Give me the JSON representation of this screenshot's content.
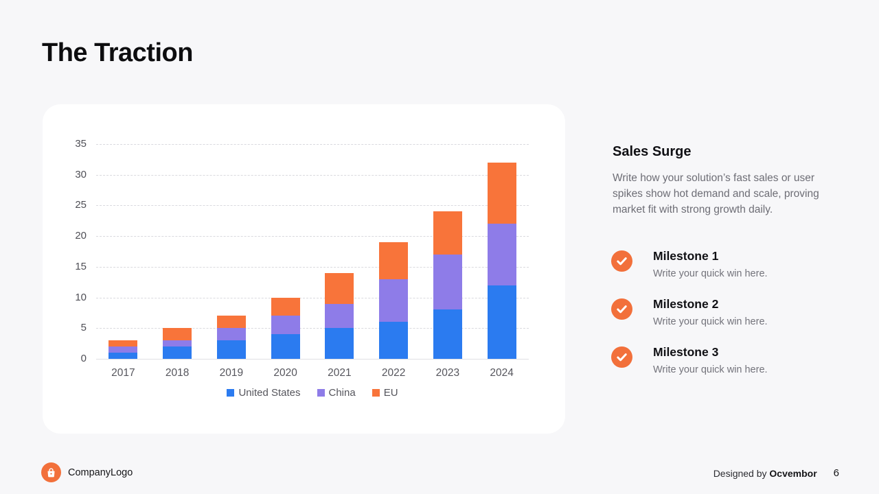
{
  "slide": {
    "title": "The Traction"
  },
  "chart_data": {
    "type": "bar",
    "stacked": true,
    "title": "",
    "xlabel": "",
    "ylabel": "",
    "categories": [
      "2017",
      "2018",
      "2019",
      "2020",
      "2021",
      "2022",
      "2023",
      "2024"
    ],
    "series": [
      {
        "name": "United States",
        "color": "#2B7BF0",
        "values": [
          1,
          2,
          3,
          4,
          5,
          6,
          8,
          12
        ]
      },
      {
        "name": "China",
        "color": "#8E7CE8",
        "values": [
          1,
          1,
          2,
          3,
          4,
          7,
          9,
          10
        ]
      },
      {
        "name": "EU",
        "color": "#F8743A",
        "values": [
          1,
          2,
          2,
          3,
          5,
          6,
          7,
          10
        ]
      }
    ],
    "totals": [
      3,
      5,
      7,
      10,
      14,
      19,
      24,
      32
    ],
    "ylim": [
      0,
      35
    ],
    "ytick_step": 5,
    "yticks": [
      0,
      5,
      10,
      15,
      20,
      25,
      30,
      35
    ],
    "grid": true,
    "gridline_style": "dashed",
    "legend_position": "bottom"
  },
  "sidebar": {
    "heading": "Sales Surge",
    "description": "Write how your solution’s fast sales or user spikes show hot demand and scale, proving market fit with strong growth daily.",
    "check_color": "#F2703B",
    "milestones": [
      {
        "title": "Milestone 1",
        "subtitle": "Write your quick win here."
      },
      {
        "title": "Milestone 2",
        "subtitle": "Write your quick win here."
      },
      {
        "title": "Milestone 3",
        "subtitle": "Write your quick win here."
      }
    ]
  },
  "footer": {
    "logo_text": "CompanyLogo",
    "designed_by_prefix": "Designed by ",
    "designed_by_name": "Ocvembor",
    "page_number": "6"
  },
  "colors": {
    "background": "#F7F7F9",
    "card": "#FFFFFF",
    "accent_orange": "#F2703B",
    "bar_blue": "#2B7BF0",
    "bar_purple": "#8E7CE8",
    "bar_orange": "#F8743A"
  }
}
